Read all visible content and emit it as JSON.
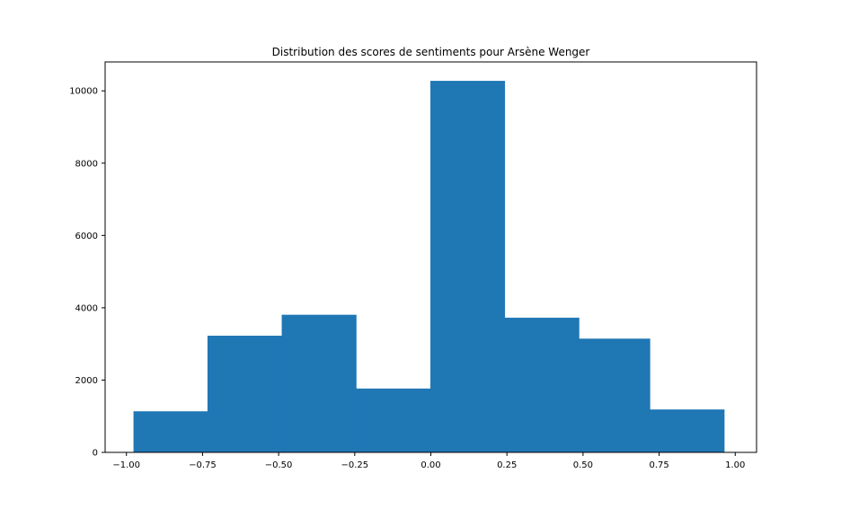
{
  "chart_data": {
    "type": "bar",
    "title": "Distribution des scores de sentiments pour Arsène Wenger",
    "xlabel": "",
    "ylabel": "",
    "xlim": [
      -1.07,
      1.07
    ],
    "ylim": [
      0,
      10800
    ],
    "xticks": [
      {
        "value": -1.0,
        "label": "−1.00"
      },
      {
        "value": -0.75,
        "label": "−0.75"
      },
      {
        "value": -0.5,
        "label": "−0.50"
      },
      {
        "value": -0.25,
        "label": "−0.25"
      },
      {
        "value": 0.0,
        "label": "0.00"
      },
      {
        "value": 0.25,
        "label": "0.25"
      },
      {
        "value": 0.5,
        "label": "0.50"
      },
      {
        "value": 0.75,
        "label": "0.75"
      },
      {
        "value": 1.0,
        "label": "1.00"
      }
    ],
    "yticks": [
      {
        "value": 0,
        "label": "0"
      },
      {
        "value": 2000,
        "label": "2000"
      },
      {
        "value": 4000,
        "label": "4000"
      },
      {
        "value": 6000,
        "label": "6000"
      },
      {
        "value": 8000,
        "label": "8000"
      },
      {
        "value": 10000,
        "label": "10000"
      }
    ],
    "bin_edges": [
      -0.976,
      -0.733,
      -0.489,
      -0.245,
      -0.001,
      0.243,
      0.487,
      0.72,
      0.964
    ],
    "values": [
      1130,
      3220,
      3800,
      1760,
      10270,
      3720,
      3140,
      1180
    ],
    "bar_color": "#1f77b4",
    "grid": false
  }
}
